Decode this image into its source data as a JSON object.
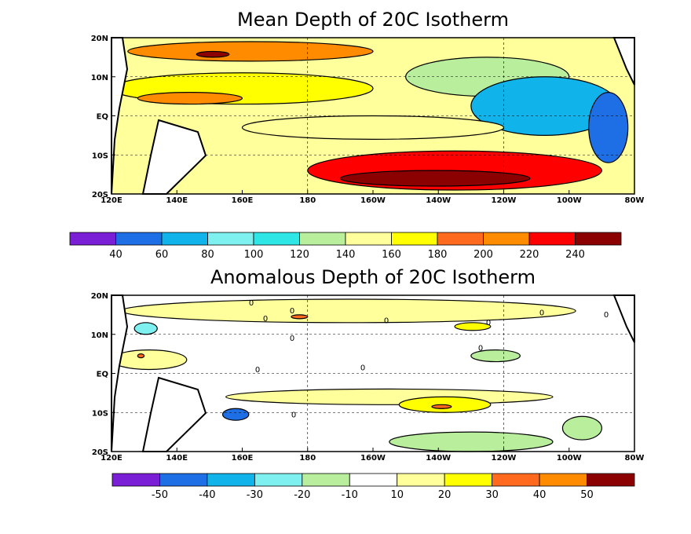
{
  "chart_data": [
    {
      "type": "heatmap",
      "title": "Mean Depth of 20C Isotherm",
      "xlabel": "",
      "ylabel": "",
      "x_ticks": [
        "120E",
        "140E",
        "160E",
        "180",
        "160W",
        "140W",
        "120W",
        "100W",
        "80W"
      ],
      "y_ticks": [
        "20N",
        "10N",
        "EQ",
        "10S",
        "20S"
      ],
      "x_range": [
        120,
        280
      ],
      "y_range": [
        -20,
        20
      ],
      "grid": true,
      "colorbar": {
        "labels": [
          "40",
          "60",
          "80",
          "100",
          "120",
          "140",
          "160",
          "180",
          "200",
          "220",
          "240"
        ],
        "levels": [
          40,
          60,
          80,
          100,
          120,
          140,
          160,
          180,
          200,
          220,
          240
        ],
        "colors": [
          "#7b1fd6",
          "#1e6fe6",
          "#10b4ea",
          "#7ef0f0",
          "#2ee6e6",
          "#b8ee9c",
          "#ffff9c",
          "#ffff00",
          "#ff6a1e",
          "#ff8c00",
          "#ff0000",
          "#8b0000"
        ]
      },
      "regions": [
        {
          "value": 210,
          "x": [
            125,
            200
          ],
          "y": [
            14,
            19
          ]
        },
        {
          "value": 240,
          "x": [
            146,
            156
          ],
          "y": [
            15,
            16.5
          ]
        },
        {
          "value": 170,
          "x": [
            120,
            200
          ],
          "y": [
            3,
            11
          ]
        },
        {
          "value": 200,
          "x": [
            128,
            160
          ],
          "y": [
            3,
            6
          ]
        },
        {
          "value": 120,
          "x": [
            210,
            260
          ],
          "y": [
            5,
            15
          ]
        },
        {
          "value": 60,
          "x": [
            230,
            275
          ],
          "y": [
            -5,
            10
          ]
        },
        {
          "value": 40,
          "x": [
            266,
            278
          ],
          "y": [
            -12,
            6
          ]
        },
        {
          "value": 150,
          "x": [
            160,
            240
          ],
          "y": [
            -6,
            0
          ]
        },
        {
          "value": 220,
          "x": [
            180,
            270
          ],
          "y": [
            -19,
            -9
          ]
        },
        {
          "value": 240,
          "x": [
            190,
            248
          ],
          "y": [
            -18,
            -14
          ]
        }
      ]
    },
    {
      "type": "heatmap",
      "title": "Anomalous Depth of 20C Isotherm",
      "xlabel": "",
      "ylabel": "",
      "x_ticks": [
        "120E",
        "140E",
        "160E",
        "180",
        "160W",
        "140W",
        "120W",
        "100W",
        "80W"
      ],
      "y_ticks": [
        "20N",
        "10N",
        "EQ",
        "10S",
        "20S"
      ],
      "x_range": [
        120,
        280
      ],
      "y_range": [
        -20,
        20
      ],
      "grid": true,
      "contour_labels": [
        "0",
        "0",
        "0",
        "0",
        "0",
        "0",
        "0",
        "0",
        "0",
        "0",
        "0",
        "0"
      ],
      "colorbar": {
        "labels": [
          "-50",
          "-40",
          "-30",
          "-20",
          "-10",
          "10",
          "20",
          "30",
          "40",
          "50"
        ],
        "levels": [
          -50,
          -40,
          -30,
          -20,
          -10,
          10,
          20,
          30,
          40,
          50
        ],
        "colors": [
          "#7b1fd6",
          "#1e6fe6",
          "#10b4ea",
          "#7ef0f0",
          "#b8ee9c",
          "#ffffff",
          "#ffff9c",
          "#ffff00",
          "#ff6a1e",
          "#ff8c00",
          "#8b0000"
        ]
      },
      "regions": [
        {
          "value": 15,
          "x": [
            123,
            262
          ],
          "y": [
            13,
            19
          ]
        },
        {
          "value": 35,
          "x": [
            175,
            180
          ],
          "y": [
            14,
            15
          ]
        },
        {
          "value": 25,
          "x": [
            225,
            236
          ],
          "y": [
            11,
            13
          ]
        },
        {
          "value": -30,
          "x": [
            127,
            134
          ],
          "y": [
            10,
            13
          ]
        },
        {
          "value": 15,
          "x": [
            120,
            143
          ],
          "y": [
            1,
            6
          ]
        },
        {
          "value": 35,
          "x": [
            128,
            130
          ],
          "y": [
            4,
            5
          ]
        },
        {
          "value": -15,
          "x": [
            230,
            245
          ],
          "y": [
            3,
            6
          ]
        },
        {
          "value": 15,
          "x": [
            155,
            255
          ],
          "y": [
            -8,
            -4
          ]
        },
        {
          "value": 25,
          "x": [
            208,
            236
          ],
          "y": [
            -10,
            -6
          ]
        },
        {
          "value": 35,
          "x": [
            218,
            224
          ],
          "y": [
            -9,
            -8
          ]
        },
        {
          "value": -45,
          "x": [
            154,
            162
          ],
          "y": [
            -12,
            -9
          ]
        },
        {
          "value": -15,
          "x": [
            258,
            270
          ],
          "y": [
            -17,
            -11
          ]
        },
        {
          "value": -15,
          "x": [
            205,
            255
          ],
          "y": [
            -20,
            -15
          ]
        }
      ]
    }
  ]
}
